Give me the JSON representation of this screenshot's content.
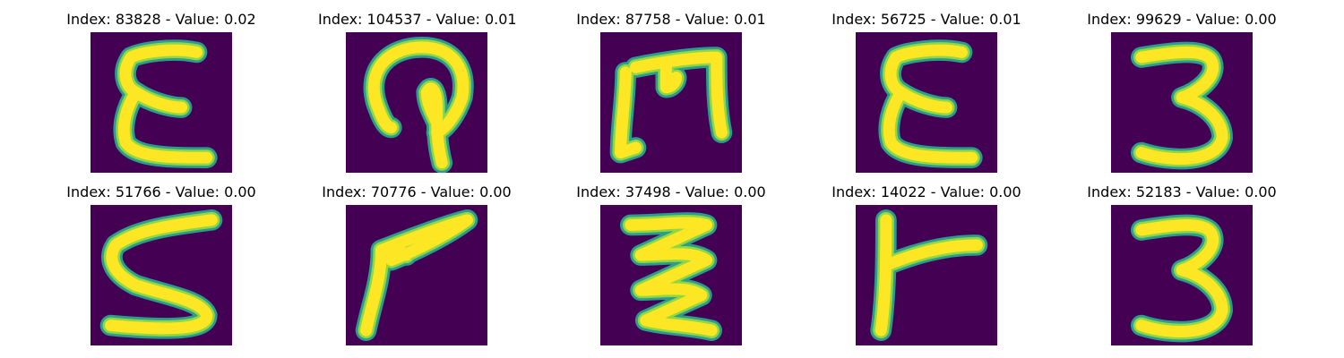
{
  "colors": {
    "background": "#440154",
    "stroke_edge": "#2a9d8e",
    "stroke_mid": "#90d743",
    "stroke_core": "#fde725"
  },
  "panels": [
    {
      "title": "Index: 83828 - Value: 0.02",
      "glyph": "epsilon-E"
    },
    {
      "title": "Index: 104537 - Value: 0.01",
      "glyph": "arch-loop"
    },
    {
      "title": "Index: 87758 - Value: 0.01",
      "glyph": "M-shape"
    },
    {
      "title": "Index: 56725 - Value: 0.01",
      "glyph": "epsilon-E"
    },
    {
      "title": "Index: 99629 - Value: 0.00",
      "glyph": "three"
    },
    {
      "title": "Index: 51766 - Value: 0.00",
      "glyph": "S-shape"
    },
    {
      "title": "Index: 70776 - Value: 0.00",
      "glyph": "angled-seven"
    },
    {
      "title": "Index: 37498 - Value: 0.00",
      "glyph": "zigzag"
    },
    {
      "title": "Index: 14022 - Value: 0.00",
      "glyph": "T-sideways"
    },
    {
      "title": "Index: 52183 - Value: 0.00",
      "glyph": "three"
    }
  ]
}
